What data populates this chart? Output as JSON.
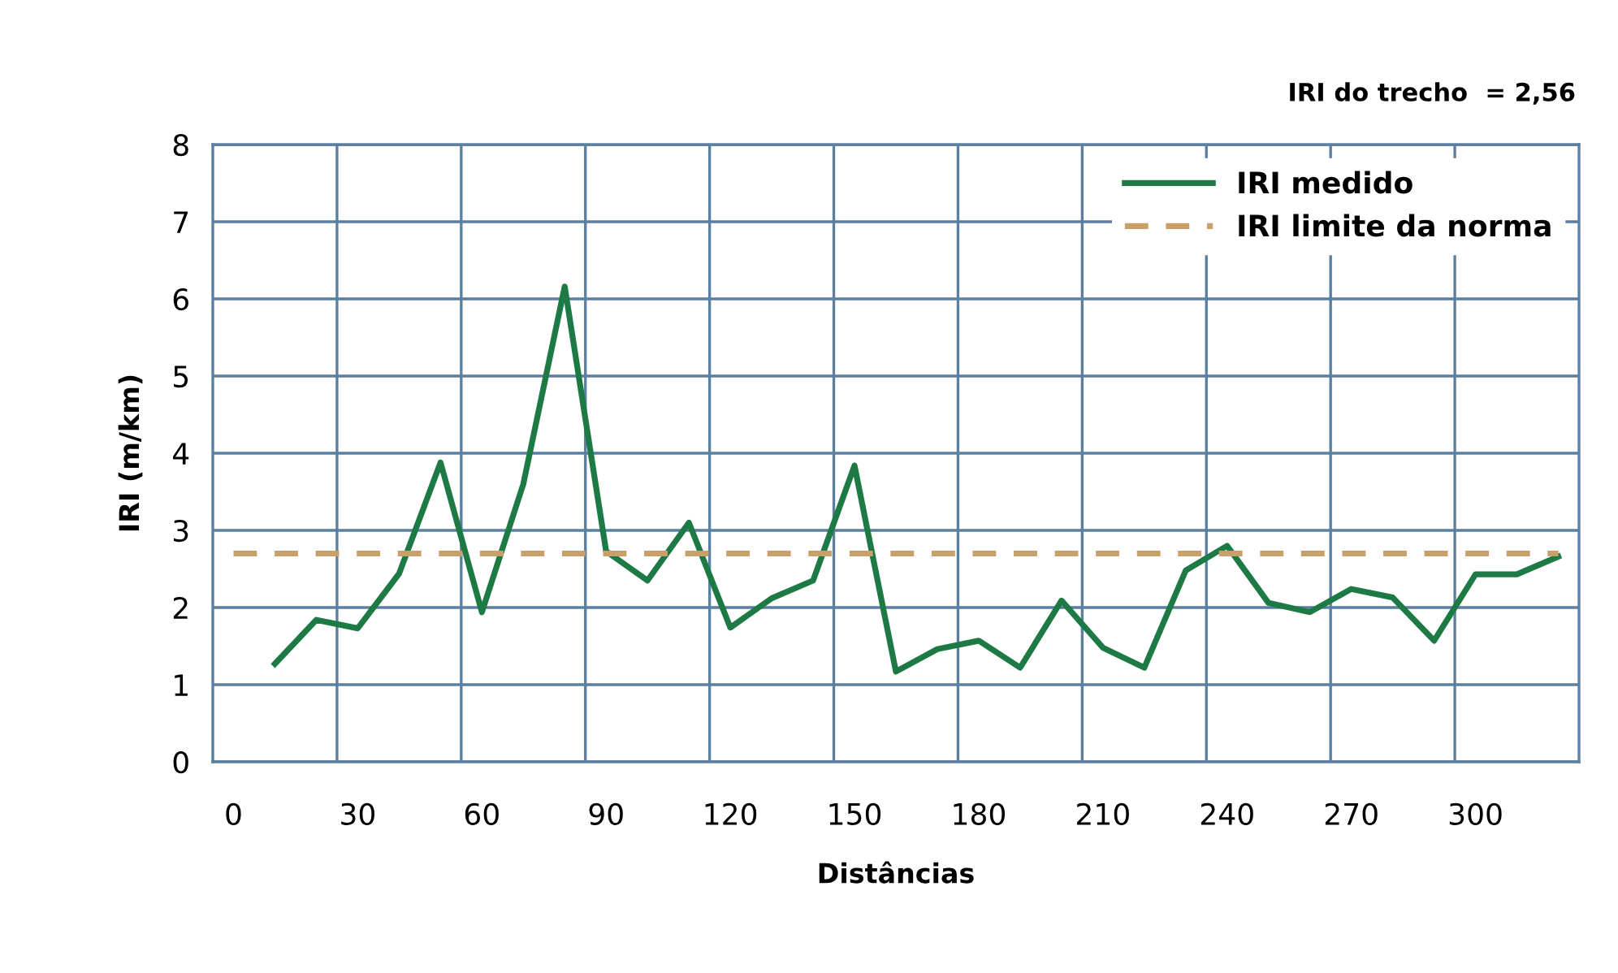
{
  "chart_data": {
    "type": "line",
    "xlabel": "Distâncias",
    "ylabel": "IRI (m/km)",
    "annotations": [
      "IRI do trecho  = 2,56"
    ],
    "categories": [
      "0",
      null,
      null,
      "30",
      null,
      null,
      "60",
      null,
      null,
      "90",
      null,
      null,
      "120",
      null,
      null,
      "150",
      null,
      null,
      "180",
      null,
      null,
      "210",
      null,
      null,
      "240",
      null,
      null,
      "270",
      null,
      null,
      "300",
      null,
      null
    ],
    "series": [
      {
        "name": "IRI medido",
        "color": "#1e7a45",
        "line_style": "solid",
        "values": [
          null,
          1.27,
          1.84,
          1.73,
          2.44,
          3.88,
          1.94,
          3.6,
          6.16,
          2.73,
          2.35,
          3.1,
          1.74,
          2.12,
          2.35,
          3.84,
          1.17,
          1.46,
          1.57,
          1.22,
          2.09,
          1.48,
          1.22,
          2.48,
          2.8,
          2.06,
          1.94,
          2.24,
          2.13,
          1.57,
          2.43,
          2.43,
          2.66
        ]
      },
      {
        "name": "IRI limite da norma",
        "color": "#c9a06a",
        "line_style": "dashed",
        "values": [
          2.7,
          2.7,
          2.7,
          2.7,
          2.7,
          2.7,
          2.7,
          2.7,
          2.7,
          2.7,
          2.7,
          2.7,
          2.7,
          2.7,
          2.7,
          2.7,
          2.7,
          2.7,
          2.7,
          2.7,
          2.7,
          2.7,
          2.7,
          2.7,
          2.7,
          2.7,
          2.7,
          2.7,
          2.7,
          2.7,
          2.7,
          2.7,
          2.7
        ]
      }
    ],
    "ylim": [
      0,
      8
    ],
    "yticks": [
      0,
      1,
      2,
      3,
      4,
      5,
      6,
      7,
      8
    ],
    "grid": true,
    "legend": "top right",
    "marker": "none"
  }
}
